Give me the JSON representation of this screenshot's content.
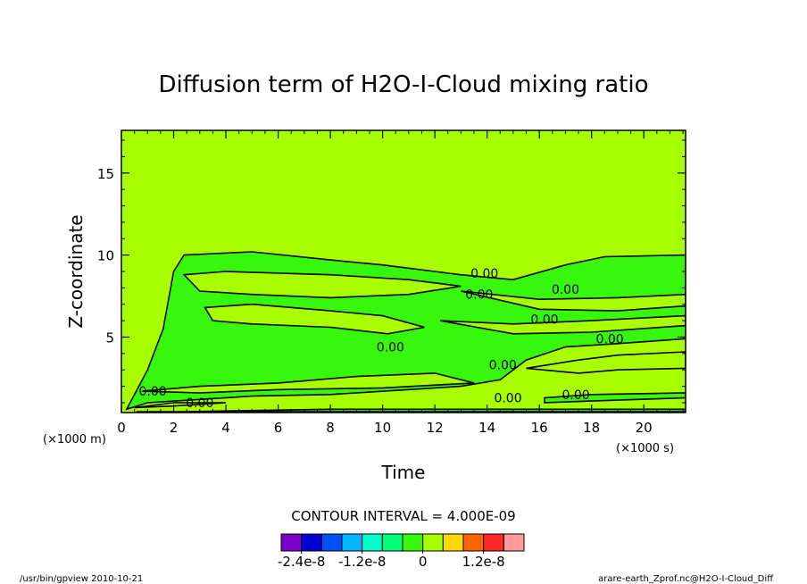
{
  "chart_data": {
    "type": "contour",
    "title": "Diffusion term of H2O-I-Cloud mixing ratio",
    "xlabel": "Time",
    "ylabel": "Z-coordinate",
    "x_unit": "(×1000 s)",
    "y_unit": "(×1000 m)",
    "xlim": [
      0,
      21.6
    ],
    "ylim": [
      0.4,
      17.6
    ],
    "x_ticks": [
      {
        "value": 0,
        "label": "0"
      },
      {
        "value": 2,
        "label": "2"
      },
      {
        "value": 4,
        "label": "4"
      },
      {
        "value": 6,
        "label": "6"
      },
      {
        "value": 8,
        "label": "8"
      },
      {
        "value": 10,
        "label": "10"
      },
      {
        "value": 12,
        "label": "12"
      },
      {
        "value": 14,
        "label": "14"
      },
      {
        "value": 16,
        "label": "16"
      },
      {
        "value": 18,
        "label": "18"
      },
      {
        "value": 20,
        "label": "20"
      }
    ],
    "y_ticks": [
      {
        "value": 5,
        "label": "5"
      },
      {
        "value": 10,
        "label": "10"
      },
      {
        "value": 15,
        "label": "15"
      }
    ],
    "background_level_color": "#a8ff00",
    "negative_level_color": "#36f70c",
    "contour_labels": [
      {
        "text": "0.00",
        "x": 1.2,
        "y": 1.7
      },
      {
        "text": "0.00",
        "x": 3.0,
        "y": 1.0
      },
      {
        "text": "0.00",
        "x": 13.9,
        "y": 8.9
      },
      {
        "text": "0.00",
        "x": 13.7,
        "y": 7.6
      },
      {
        "text": "0.00",
        "x": 17.0,
        "y": 7.9
      },
      {
        "text": "0.00",
        "x": 16.2,
        "y": 6.1
      },
      {
        "text": "0.00",
        "x": 18.7,
        "y": 4.9
      },
      {
        "text": "0.00",
        "x": 14.6,
        "y": 3.3
      },
      {
        "text": "0.00",
        "x": 10.3,
        "y": 4.4
      },
      {
        "text": "0.00",
        "x": 14.8,
        "y": 1.3
      },
      {
        "text": "0.00",
        "x": 17.4,
        "y": 1.5
      }
    ],
    "negative_regions": [
      [
        [
          0.2,
          0.6
        ],
        [
          1.0,
          3.0
        ],
        [
          1.6,
          5.5
        ],
        [
          2.0,
          9.0
        ],
        [
          2.4,
          10.0
        ],
        [
          5.0,
          10.2
        ],
        [
          8.0,
          9.7
        ],
        [
          10.0,
          9.4
        ],
        [
          12.0,
          9.0
        ],
        [
          13.0,
          8.8
        ],
        [
          15.0,
          8.5
        ],
        [
          17.0,
          9.4
        ],
        [
          18.5,
          9.9
        ],
        [
          21.6,
          10.0
        ],
        [
          21.6,
          4.9
        ],
        [
          19.0,
          4.6
        ],
        [
          17.0,
          4.4
        ],
        [
          15.5,
          3.6
        ],
        [
          14.5,
          2.4
        ],
        [
          13.0,
          2.0
        ],
        [
          11.0,
          1.8
        ],
        [
          8.0,
          1.5
        ],
        [
          5.0,
          1.4
        ],
        [
          3.0,
          1.2
        ],
        [
          1.0,
          1.0
        ],
        [
          0.2,
          0.6
        ]
      ],
      [
        [
          16.2,
          1.0
        ],
        [
          18.0,
          1.1
        ],
        [
          21.6,
          1.3
        ],
        [
          21.6,
          1.6
        ],
        [
          18.0,
          1.5
        ],
        [
          16.2,
          1.3
        ],
        [
          16.2,
          1.0
        ]
      ],
      [
        [
          0.6,
          0.4
        ],
        [
          4.0,
          0.5
        ],
        [
          8.0,
          0.6
        ],
        [
          12.0,
          0.6
        ],
        [
          16.0,
          0.6
        ],
        [
          21.6,
          0.6
        ],
        [
          21.6,
          0.45
        ],
        [
          0.6,
          0.45
        ],
        [
          0.6,
          0.4
        ]
      ]
    ],
    "zero_regions": [
      [
        [
          2.4,
          8.8
        ],
        [
          4.0,
          9.0
        ],
        [
          8.0,
          8.8
        ],
        [
          11.0,
          8.5
        ],
        [
          13.0,
          8.1
        ],
        [
          11.0,
          7.6
        ],
        [
          8.0,
          7.4
        ],
        [
          5.0,
          7.6
        ],
        [
          3.0,
          7.8
        ],
        [
          2.4,
          8.8
        ]
      ],
      [
        [
          3.2,
          6.8
        ],
        [
          5.0,
          7.0
        ],
        [
          8.0,
          6.6
        ],
        [
          10.0,
          6.3
        ],
        [
          11.6,
          5.6
        ],
        [
          10.2,
          5.2
        ],
        [
          8.0,
          5.6
        ],
        [
          5.0,
          5.8
        ],
        [
          3.5,
          6.0
        ],
        [
          3.2,
          6.8
        ]
      ],
      [
        [
          13.0,
          7.8
        ],
        [
          16.0,
          7.3
        ],
        [
          19.0,
          7.4
        ],
        [
          21.6,
          7.6
        ],
        [
          21.6,
          6.9
        ],
        [
          19.0,
          6.6
        ],
        [
          16.0,
          6.7
        ],
        [
          13.0,
          7.8
        ]
      ],
      [
        [
          12.2,
          6.0
        ],
        [
          15.0,
          5.8
        ],
        [
          18.0,
          6.0
        ],
        [
          21.6,
          6.3
        ],
        [
          21.6,
          5.7
        ],
        [
          18.0,
          5.3
        ],
        [
          15.0,
          5.2
        ],
        [
          12.2,
          6.0
        ]
      ],
      [
        [
          15.5,
          3.1
        ],
        [
          17.5,
          3.6
        ],
        [
          19.0,
          3.9
        ],
        [
          21.6,
          4.1
        ],
        [
          21.6,
          3.1
        ],
        [
          19.0,
          3.0
        ],
        [
          17.5,
          2.8
        ],
        [
          15.5,
          3.1
        ]
      ],
      [
        [
          0.8,
          1.7
        ],
        [
          3.0,
          2.0
        ],
        [
          6.0,
          2.2
        ],
        [
          9.0,
          2.6
        ],
        [
          12.0,
          2.8
        ],
        [
          13.5,
          2.2
        ],
        [
          10.0,
          1.9
        ],
        [
          6.0,
          1.8
        ],
        [
          3.0,
          1.6
        ],
        [
          0.8,
          1.7
        ]
      ],
      [
        [
          0.5,
          0.7
        ],
        [
          2.0,
          1.0
        ],
        [
          4.0,
          1.0
        ],
        [
          2.0,
          0.8
        ],
        [
          0.5,
          0.7
        ]
      ]
    ],
    "contour_interval_text": "CONTOUR INTERVAL = 4.000E-09",
    "colorbar": {
      "colors": [
        "#7a00c8",
        "#0000d2",
        "#0050ff",
        "#00b4ff",
        "#00ffc8",
        "#00ff78",
        "#36f70c",
        "#a8ff00",
        "#ffd800",
        "#ff6400",
        "#ff2828",
        "#ff9a9a"
      ],
      "tick_labels": [
        {
          "label": "-2.4e-8",
          "position": 1
        },
        {
          "label": "-1.2e-8",
          "position": 4
        },
        {
          "label": "0",
          "position": 7
        },
        {
          "label": "1.2e-8",
          "position": 10
        }
      ]
    }
  },
  "footer": {
    "left": "/usr/bin/gpview  2010-10-21",
    "right": "arare-earth_Zprof.nc@H2O-I-Cloud_Diff"
  }
}
